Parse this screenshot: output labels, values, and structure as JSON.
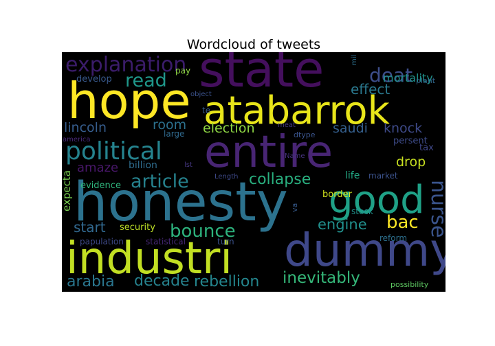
{
  "chart_data": {
    "type": "wordcloud",
    "title": "Wordcloud of tweets",
    "background": "#000000",
    "colormap": "viridis",
    "words": [
      {
        "text": "state",
        "color": "#440f5d"
      },
      {
        "text": "hope",
        "color": "#fde725"
      },
      {
        "text": "atabarrok",
        "color": "#e8e51a"
      },
      {
        "text": "entire",
        "color": "#482574"
      },
      {
        "text": "honesty",
        "color": "#2c728e"
      },
      {
        "text": "industri",
        "color": "#c2df23"
      },
      {
        "text": "dummy",
        "color": "#3f4889"
      },
      {
        "text": "good",
        "color": "#1fa187"
      },
      {
        "text": "political",
        "color": "#25838e"
      },
      {
        "text": "explanation",
        "color": "#3b1c6a"
      },
      {
        "text": "deat",
        "color": "#3d4e8a"
      },
      {
        "text": "read",
        "color": "#1f988b"
      },
      {
        "text": "effect",
        "color": "#2a788e"
      },
      {
        "text": "mortality",
        "color": "#20928c"
      },
      {
        "text": "article",
        "color": "#26828e"
      },
      {
        "text": "collapse",
        "color": "#29af7f"
      },
      {
        "text": "nurse",
        "color": "#3a548c"
      },
      {
        "text": "bac",
        "color": "#fde725"
      },
      {
        "text": "bounce",
        "color": "#2db27d"
      },
      {
        "text": "inevitably",
        "color": "#35b779"
      },
      {
        "text": "rebellion",
        "color": "#24868e"
      },
      {
        "text": "decade",
        "color": "#26828e"
      },
      {
        "text": "arabia",
        "color": "#2a768e"
      },
      {
        "text": "engine",
        "color": "#21908d"
      },
      {
        "text": "start",
        "color": "#31688e"
      },
      {
        "text": "lincoln",
        "color": "#365d8d"
      },
      {
        "text": "room",
        "color": "#2c718e"
      },
      {
        "text": "election",
        "color": "#8fd744"
      },
      {
        "text": "saudi",
        "color": "#355f8d"
      },
      {
        "text": "knock",
        "color": "#3e4a89"
      },
      {
        "text": "amaze",
        "color": "#481769"
      },
      {
        "text": "drop",
        "color": "#c8e020"
      },
      {
        "text": "billion",
        "color": "#2f6c8e"
      },
      {
        "text": "life",
        "color": "#22a884"
      },
      {
        "text": "persent",
        "color": "#3e4c8a"
      },
      {
        "text": "tax",
        "color": "#3f4788"
      },
      {
        "text": "expecta",
        "color": "#7ad151"
      },
      {
        "text": "evidence",
        "color": "#2fb47c"
      },
      {
        "text": "security",
        "color": "#bddf26"
      },
      {
        "text": "border",
        "color": "#d0e11c"
      },
      {
        "text": "market",
        "color": "#3b528b"
      },
      {
        "text": "stock",
        "color": "#21918c"
      },
      {
        "text": "reform",
        "color": "#2d708e"
      },
      {
        "text": "papulation",
        "color": "#3e4989"
      },
      {
        "text": "statistical",
        "color": "#482878"
      },
      {
        "text": "turn",
        "color": "#3b528b"
      },
      {
        "text": "possibility",
        "color": "#5ec962"
      },
      {
        "text": "pay",
        "color": "#8fd744"
      },
      {
        "text": "develop",
        "color": "#38598c"
      },
      {
        "text": "plant",
        "color": "#31688e"
      },
      {
        "text": "mil",
        "color": "#2d708e"
      },
      {
        "text": "object",
        "color": "#3b528b"
      },
      {
        "text": "te",
        "color": "#365c8d"
      },
      {
        "text": "meat",
        "color": "#443a83"
      },
      {
        "text": "america",
        "color": "#482878"
      },
      {
        "text": "large",
        "color": "#306a8e"
      },
      {
        "text": "dtype",
        "color": "#3a548c"
      },
      {
        "text": "Name",
        "color": "#46327e"
      },
      {
        "text": "lst",
        "color": "#453781"
      },
      {
        "text": "Length",
        "color": "#3e4989"
      },
      {
        "text": "va",
        "color": "#375b8d"
      }
    ]
  }
}
